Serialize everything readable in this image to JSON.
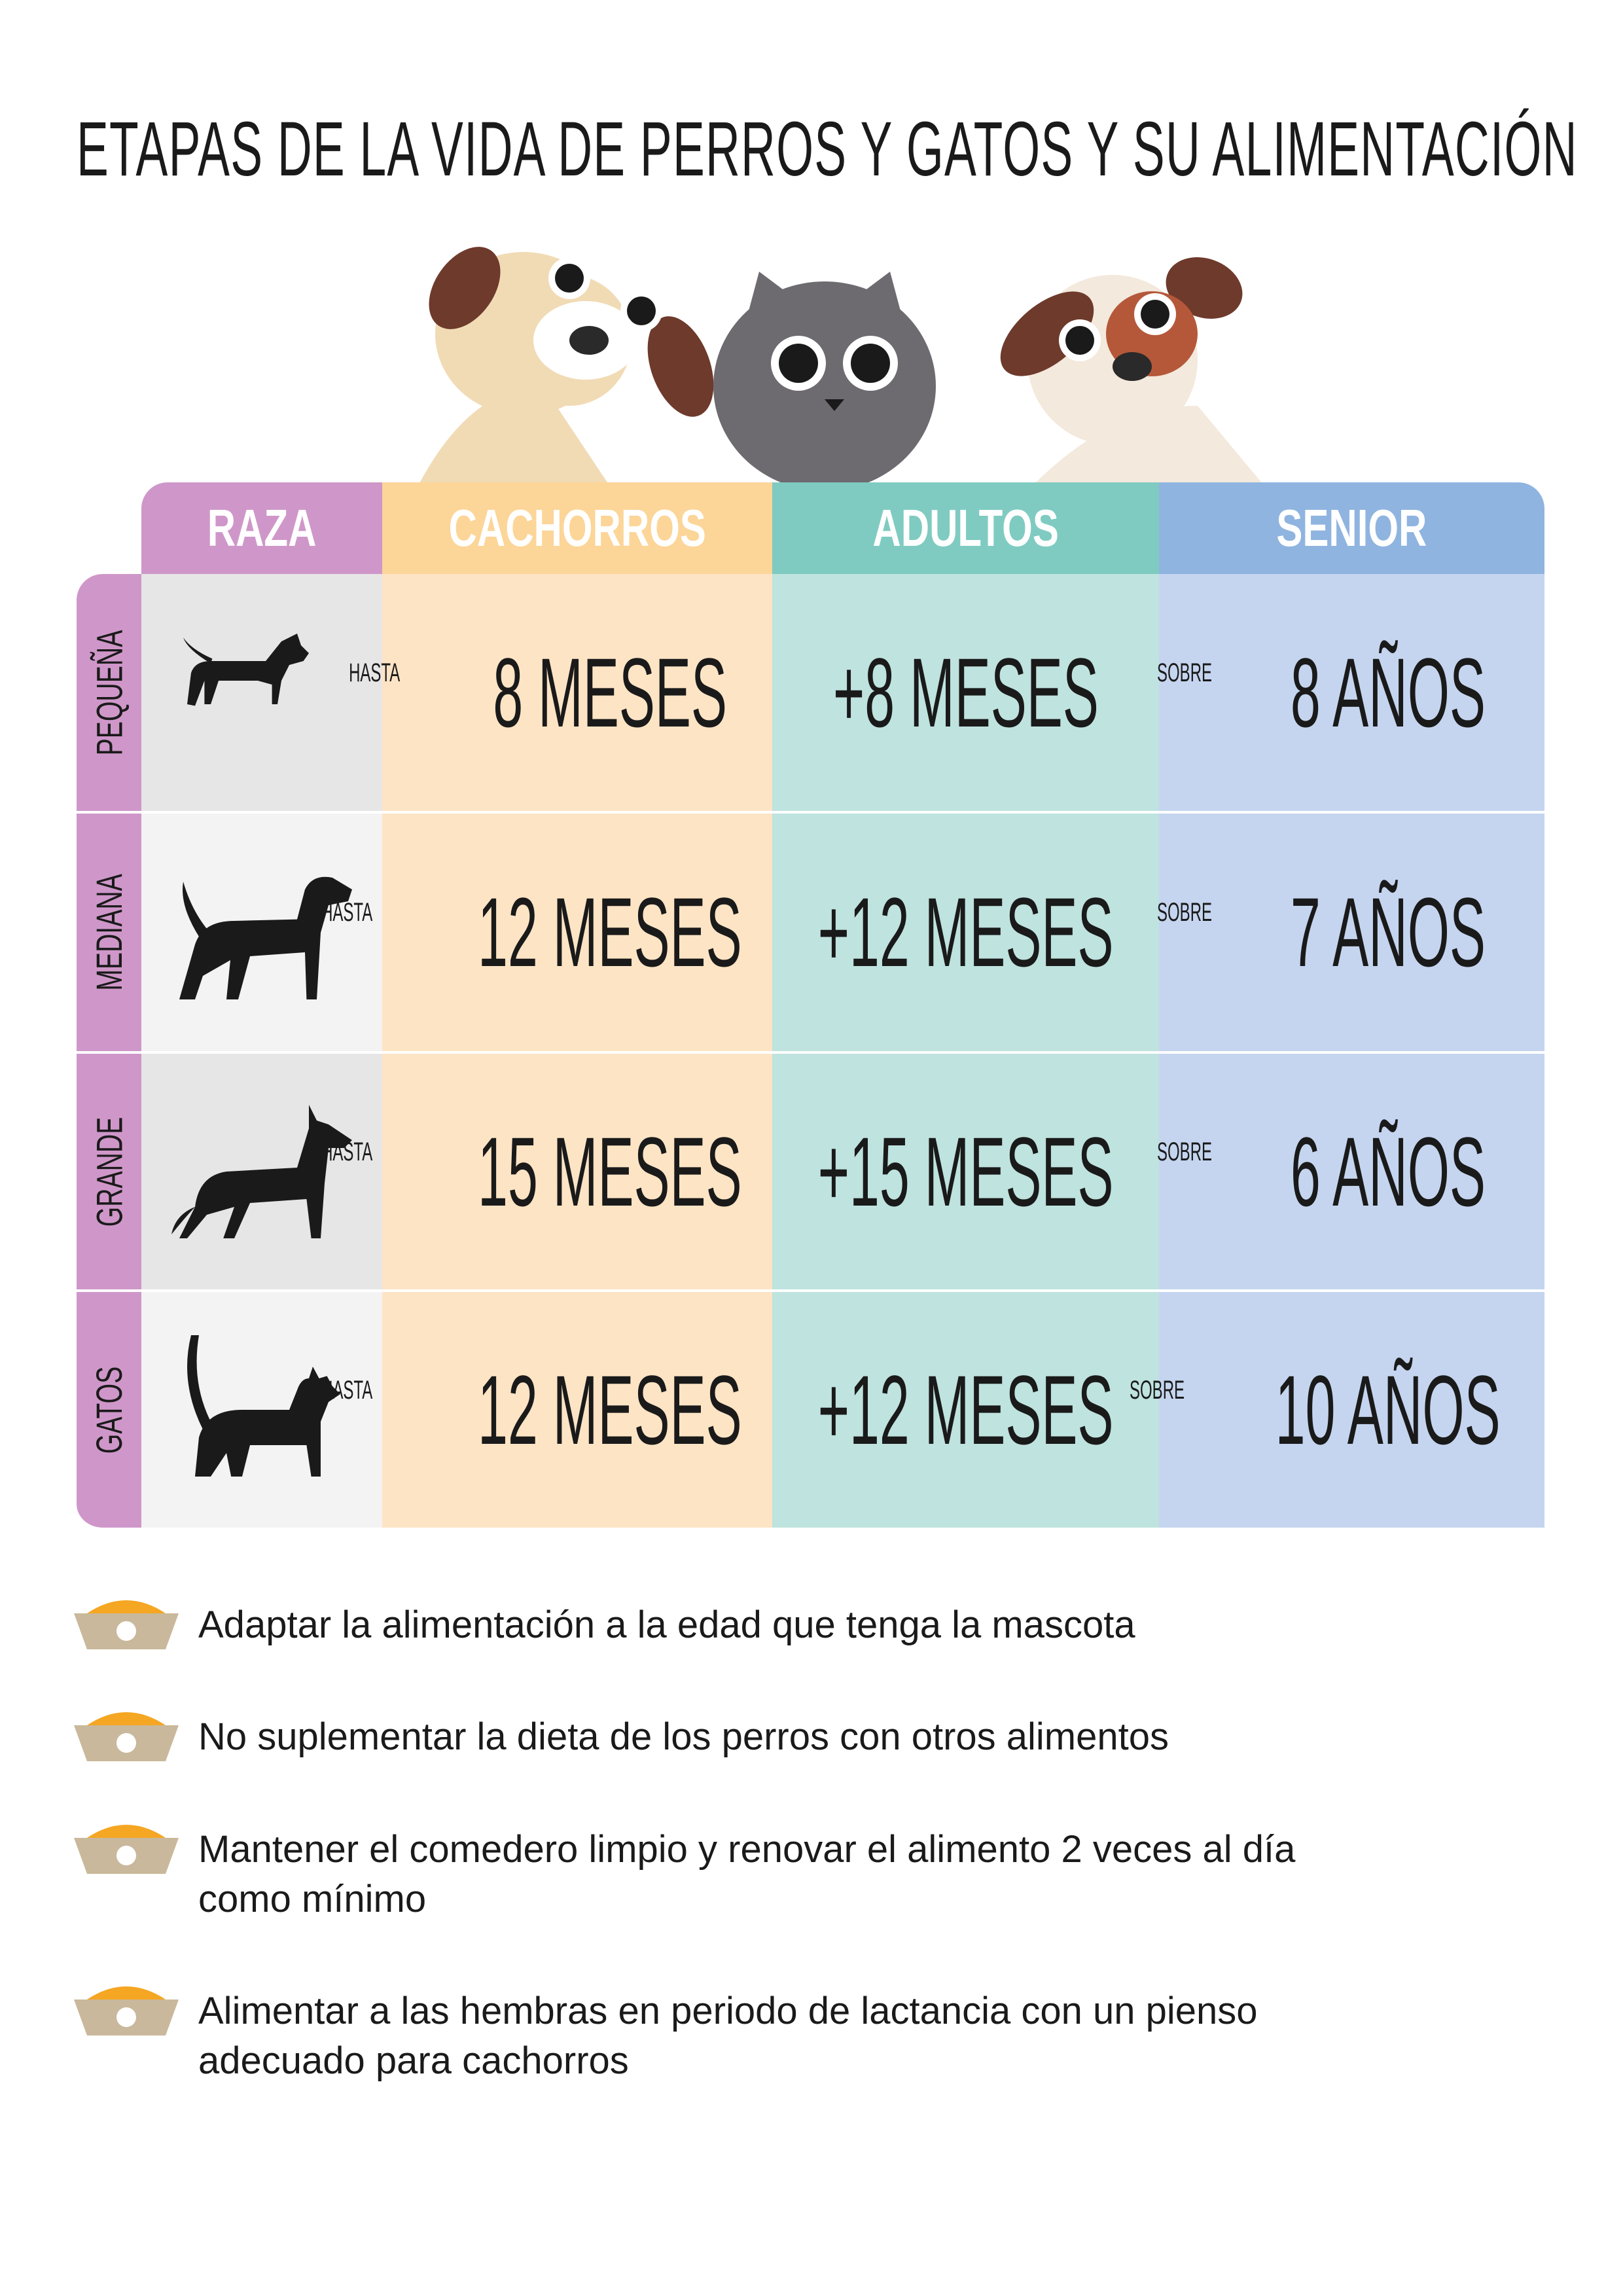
{
  "header": {
    "title": "ETAPAS DE LA VIDA DE PERROS Y GATOS Y SU ALIMENTACIÓN"
  },
  "table": {
    "headers": [
      "RAZA",
      "CACHORROS",
      "ADULTOS",
      "SENIOR"
    ],
    "rows": [
      {
        "size": "PEQUEÑA",
        "cachorros": {
          "prefix": "HASTA",
          "value": "8 MESES"
        },
        "adultos": "+8 MESES",
        "senior": {
          "prefix": "SOBRE",
          "value": "8 AÑOS"
        }
      },
      {
        "size": "MEDIANA",
        "cachorros": {
          "prefix": "HASTA",
          "value": "12 MESES"
        },
        "adultos": "+12 MESES",
        "senior": {
          "prefix": "SOBRE",
          "value": "7 AÑOS"
        }
      },
      {
        "size": "GRANDE",
        "cachorros": {
          "prefix": "HASTA",
          "value": "15 MESES"
        },
        "adultos": "+15 MESES",
        "senior": {
          "prefix": "SOBRE",
          "value": "6 AÑOS"
        }
      },
      {
        "size": "GATOS",
        "cachorros": {
          "prefix": "HASTA",
          "value": "12 MESES"
        },
        "adultos": "+12 MESES",
        "senior": {
          "prefix": "SOBRE",
          "value": "10 AÑOS"
        }
      }
    ]
  },
  "tips": [
    "Adaptar la alimentación a la edad que tenga la mascota",
    "No suplementar la dieta de los perros con otros alimentos",
    "Mantener el comedero limpio y renovar el alimento 2 veces al día como mínimo",
    "Alimentar a las hembras en periodo de lactancia con un pienso adecuado para cachorros"
  ]
}
